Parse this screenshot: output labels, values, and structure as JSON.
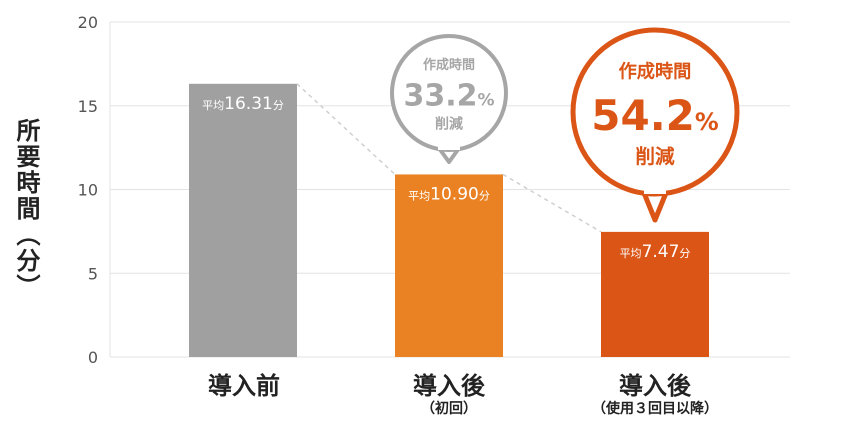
{
  "chart_data": {
    "type": "bar",
    "ylabel": "所要時間（分）",
    "ylim": [
      0,
      20
    ],
    "yticks": [
      "0",
      "5",
      "10",
      "15",
      "20"
    ],
    "categories": [
      {
        "main": "導入前",
        "sub": ""
      },
      {
        "main": "導入後",
        "sub": "（初回）"
      },
      {
        "main": "導入後",
        "sub": "（使用３回目以降）"
      }
    ],
    "values": [
      16.31,
      10.9,
      7.47
    ],
    "bar_labels": [
      {
        "prefix": "平均",
        "number": "16.31",
        "unit": "分"
      },
      {
        "prefix": "平均",
        "number": "10.90",
        "unit": "分"
      },
      {
        "prefix": "平均",
        "number": "7.47",
        "unit": "分"
      }
    ],
    "colors": [
      "#a0a0a0",
      "#ea8223",
      "#db5516"
    ],
    "callouts": [
      {
        "line1": "作成時間",
        "number": "33.2",
        "percent": "%",
        "line3": "削減",
        "color": "#a6a6a6"
      },
      {
        "line1": "作成時間",
        "number": "54.2",
        "percent": "%",
        "line3": "削減",
        "color": "#db5516"
      }
    ],
    "grid": true,
    "legend": "none"
  }
}
